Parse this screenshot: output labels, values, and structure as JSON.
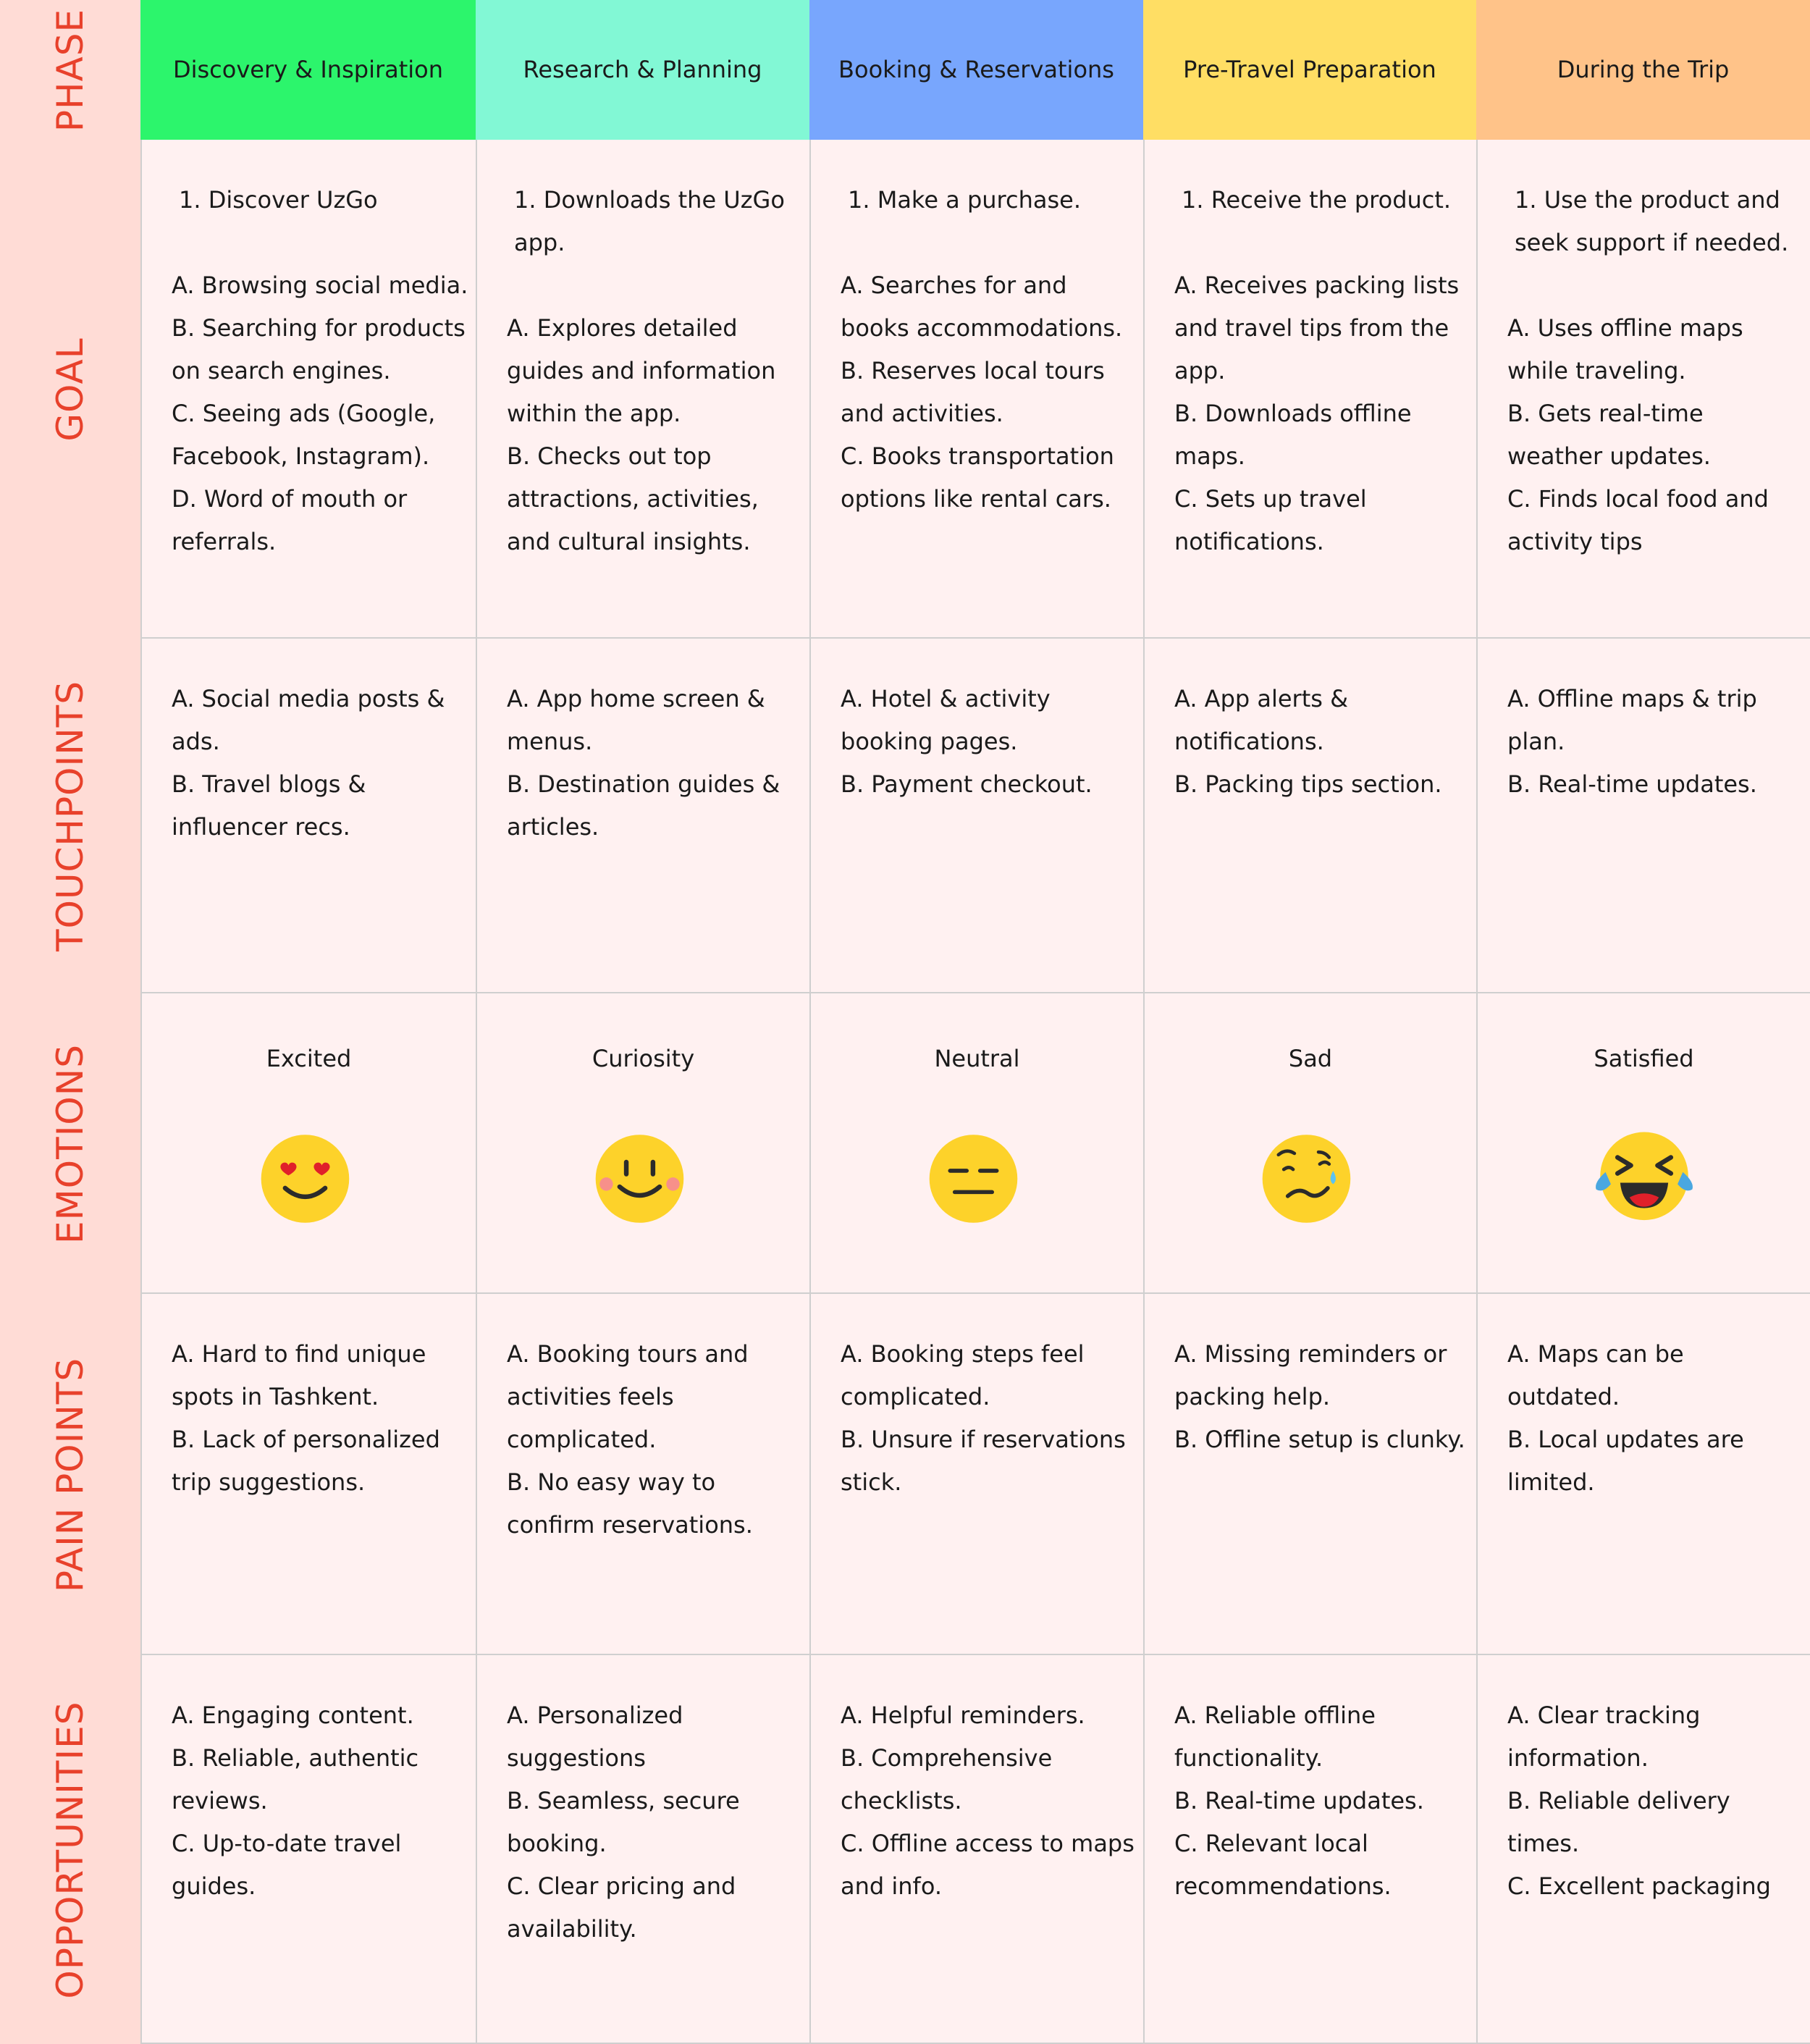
{
  "row_labels": [
    "PHASE",
    "GOAL",
    "TOUCHPOINTS",
    "EMOTIONS",
    "PAIN POINTS",
    "OPPORTUNITIES"
  ],
  "phases": [
    "Discovery & Inspiration",
    "Research & Planning",
    "Booking & Reservations",
    "Pre-Travel Preparation",
    "During the Trip"
  ],
  "goals": [
    {
      "main": "1. Discover UzGo",
      "items": [
        "A. Browsing social media.",
        "B. Searching for products on search engines.",
        "C. Seeing ads (Google, Facebook, Instagram).",
        "D. Word of mouth or referrals."
      ]
    },
    {
      "main": "1. Downloads the UzGo app.",
      "items": [
        "A. Explores detailed guides and information within the app.",
        "B. Checks out top attractions, activities, and cultural insights."
      ]
    },
    {
      "main": "1. Make a purchase.",
      "items": [
        "A. Searches for and books accommodations.",
        "B. Reserves local tours and activities.",
        "C. Books transportation options like rental cars."
      ]
    },
    {
      "main": "1. Receive the product.",
      "items": [
        "A. Receives packing lists and travel tips from the app.",
        "B. Downloads offline maps.",
        "C. Sets up travel notifications."
      ]
    },
    {
      "main": "1. Use the product and seek support if needed.",
      "items": [
        "A. Uses offline maps while traveling.",
        "B. Gets real-time weather updates.",
        "C. Finds local food and activity tips"
      ]
    }
  ],
  "touchpoints": [
    [
      "A. Social media posts & ads.",
      "B. Travel blogs & influencer recs."
    ],
    [
      "A. App home screen & menus.",
      "B. Destination guides & articles."
    ],
    [
      "A. Hotel & activity booking pages.",
      "B. Payment checkout."
    ],
    [
      "A. App alerts & notifications.",
      "B. Packing tips section."
    ],
    [
      "A. Offline maps & trip plan.",
      "B. Real-time updates."
    ]
  ],
  "emotions": [
    "Excited",
    "Curiosity",
    "Neutral",
    "Sad",
    "Satisfied"
  ],
  "pain_points": [
    [
      "A. Hard to find unique spots in Tashkent.",
      "B. Lack of personalized trip suggestions."
    ],
    [
      "A. Booking tours and activities feels complicated.",
      "B. No easy way to confirm reservations."
    ],
    [
      "A. Booking steps feel complicated.",
      "B. Unsure if reservations stick."
    ],
    [
      "A. Missing reminders or packing help.",
      "B. Offline setup is clunky."
    ],
    [
      "A. Maps can be outdated.",
      "B. Local updates are limited."
    ]
  ],
  "opportunities": [
    [
      "A. Engaging content.",
      "B. Reliable, authentic reviews.",
      "C. Up-to-date travel guides."
    ],
    [
      "A. Personalized suggestions",
      "B. Seamless, secure booking.",
      "C. Clear pricing and availability."
    ],
    [
      "A. Helpful reminders.",
      "B. Comprehensive checklists.",
      "C. Offline access to maps and info."
    ],
    [
      "A. Reliable offline functionality.",
      "B. Real-time updates.",
      "C. Relevant local recommendations."
    ],
    [
      "A. Clear tracking information.",
      "B. Reliable delivery times.",
      "C. Excellent packaging"
    ]
  ]
}
